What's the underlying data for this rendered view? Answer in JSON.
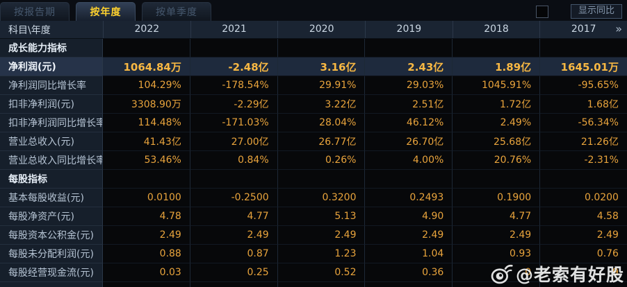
{
  "tabs": [
    {
      "label": "按报告期",
      "active": false
    },
    {
      "label": "按年度",
      "active": true
    },
    {
      "label": "按单季度",
      "active": false
    }
  ],
  "controls": {
    "show_yoy_label": "显示同比",
    "checkbox_checked": false
  },
  "table": {
    "corner_header": "科目\\年度",
    "year_columns": [
      "2022",
      "2021",
      "2020",
      "2019",
      "2018",
      "2017"
    ],
    "more_icon": "»",
    "rows": [
      {
        "type": "section",
        "label": "成长能力指标",
        "values": [
          "",
          "",
          "",
          "",
          "",
          ""
        ]
      },
      {
        "type": "data",
        "highlight": true,
        "label": "净利润(元)",
        "values": [
          "1064.84万",
          "-2.48亿",
          "3.16亿",
          "2.43亿",
          "1.89亿",
          "1645.01万"
        ]
      },
      {
        "type": "data",
        "highlight": false,
        "label": "净利润同比增长率",
        "values": [
          "104.29%",
          "-178.54%",
          "29.91%",
          "29.03%",
          "1045.91%",
          "-95.65%"
        ]
      },
      {
        "type": "data",
        "highlight": false,
        "label": "扣非净利润(元)",
        "values": [
          "3308.90万",
          "-2.29亿",
          "3.22亿",
          "2.51亿",
          "1.72亿",
          "1.68亿"
        ]
      },
      {
        "type": "data",
        "highlight": false,
        "label": "扣非净利润同比增长率",
        "values": [
          "114.48%",
          "-171.03%",
          "28.04%",
          "46.12%",
          "2.49%",
          "-56.34%"
        ]
      },
      {
        "type": "data",
        "highlight": false,
        "label": "营业总收入(元)",
        "values": [
          "41.43亿",
          "27.00亿",
          "26.77亿",
          "26.70亿",
          "25.68亿",
          "21.26亿"
        ]
      },
      {
        "type": "data",
        "highlight": false,
        "label": "营业总收入同比增长率",
        "values": [
          "53.46%",
          "0.84%",
          "0.26%",
          "4.00%",
          "20.76%",
          "-2.31%"
        ]
      },
      {
        "type": "section",
        "label": "每股指标",
        "values": [
          "",
          "",
          "",
          "",
          "",
          ""
        ]
      },
      {
        "type": "data",
        "highlight": false,
        "label": "基本每股收益(元)",
        "values": [
          "0.0100",
          "-0.2500",
          "0.3200",
          "0.2493",
          "0.1900",
          "0.0200"
        ]
      },
      {
        "type": "data",
        "highlight": false,
        "label": "每股净资产(元)",
        "values": [
          "4.78",
          "4.77",
          "5.13",
          "4.90",
          "4.77",
          "4.58"
        ]
      },
      {
        "type": "data",
        "highlight": false,
        "label": "每股资本公积金(元)",
        "values": [
          "2.49",
          "2.49",
          "2.49",
          "2.49",
          "2.49",
          "2.49"
        ]
      },
      {
        "type": "data",
        "highlight": false,
        "label": "每股未分配利润(元)",
        "values": [
          "0.88",
          "0.87",
          "1.23",
          "1.04",
          "0.93",
          "0.76"
        ]
      },
      {
        "type": "data",
        "highlight": false,
        "label": "每股经营现金流(元)",
        "values": [
          "0.03",
          "0.25",
          "0.52",
          "0.36",
          "0",
          "9"
        ]
      },
      {
        "type": "data",
        "highlight": false,
        "label": "",
        "values": [
          "",
          "",
          "",
          "",
          "",
          ""
        ]
      }
    ]
  },
  "watermark": {
    "logo": "weibo-icon",
    "handle": "@老索有好股"
  },
  "colors": {
    "accent_tab_active": "#ffd22e",
    "value_orange": "#e9a43c",
    "highlight_value_orange": "#f8b843",
    "header_bg": "#1a2432",
    "label_col_bg": "#161f2b",
    "highlight_row_bg": "#1e2a3d"
  }
}
